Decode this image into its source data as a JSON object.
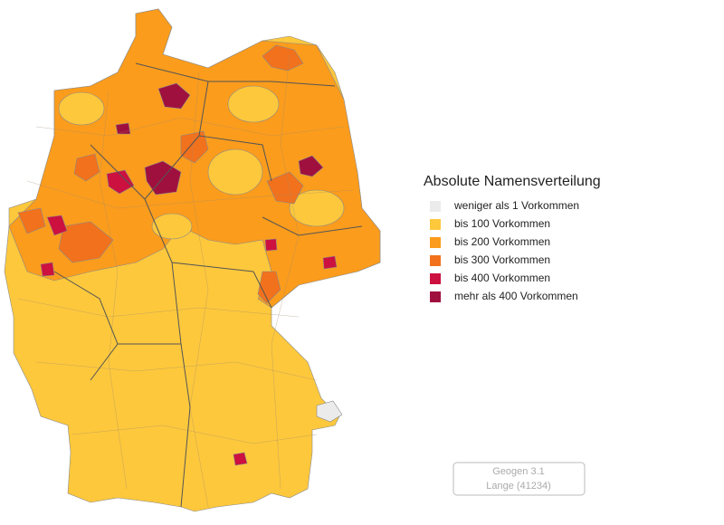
{
  "legend": {
    "title": "Absolute Namensverteilung",
    "items": [
      {
        "label": "weniger als 1 Vorkommen",
        "color": "#ebebeb"
      },
      {
        "label": "bis 100 Vorkommen",
        "color": "#fdc83c"
      },
      {
        "label": "bis 200 Vorkommen",
        "color": "#fb9c1c"
      },
      {
        "label": "bis 300 Vorkommen",
        "color": "#f2711c"
      },
      {
        "label": "bis 400 Vorkommen",
        "color": "#cc1040"
      },
      {
        "label": "mehr als 400 Vorkommen",
        "color": "#a0103e"
      }
    ]
  },
  "footer": {
    "lines": [
      "Geogen 3.1",
      "Lange (41234)"
    ]
  }
}
